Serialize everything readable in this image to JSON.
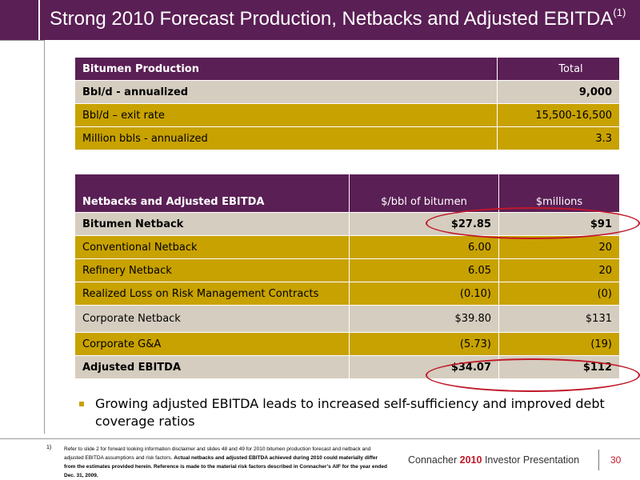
{
  "slide": {
    "title": "Strong 2010 Forecast Production, Netbacks and Adjusted EBITDA",
    "title_footnote_marker": "(1)"
  },
  "production_table": {
    "headers": [
      "Bitumen Production",
      "Total"
    ],
    "rows": [
      {
        "label": "Bbl/d - annualized",
        "total": "9,000"
      },
      {
        "label": "Bbl/d – exit rate",
        "total": "15,500-16,500"
      },
      {
        "label": "Million bbls - annualized",
        "total": "3.3"
      }
    ]
  },
  "netbacks_table": {
    "headers": [
      "Netbacks and Adjusted EBITDA",
      "$/bbl of bitumen",
      "$millions"
    ],
    "rows": [
      {
        "label": "Bitumen Netback",
        "per_bbl": "$27.85",
        "millions": "$91"
      },
      {
        "label": "Conventional Netback",
        "per_bbl": "6.00",
        "millions": "20"
      },
      {
        "label": "Refinery Netback",
        "per_bbl": "6.05",
        "millions": "20"
      },
      {
        "label": "Realized Loss on Risk Management Contracts",
        "per_bbl": "(0.10)",
        "millions": "(0)"
      },
      {
        "label": "Corporate Netback",
        "per_bbl": "$39.80",
        "millions": "$131"
      },
      {
        "label": "Corporate G&A",
        "per_bbl": "(5.73)",
        "millions": "(19)"
      },
      {
        "label": "Adjusted EBITDA",
        "per_bbl": "$34.07",
        "millions": "$112"
      }
    ]
  },
  "bullet": "Growing adjusted EBITDA leads to increased self-sufficiency and improved debt coverage ratios",
  "footnote": {
    "marker": "1)",
    "text": "Refer to slide 2 for forward looking information disclaimer and slides 48 and 49 for 2010 bitumen production forecast and netback and adjusted EBITDA assumptions and risk factors.",
    "bold_text": "Actual netbacks and adjusted EBITDA achieved during 2010 could materially differ from the estimates provided herein.  Reference is made to the material risk factors described in Connacher’s AIF for the year ended Dec. 31, 2009."
  },
  "footer": {
    "company": "Connacher",
    "year": "2010",
    "label": "Investor Presentation",
    "page_number": "30"
  },
  "colors": {
    "header_purple": "#5a1f55",
    "gold_row": "#c8a200",
    "light_row": "#d5cdbf",
    "highlight_oval": "#c0182a"
  }
}
